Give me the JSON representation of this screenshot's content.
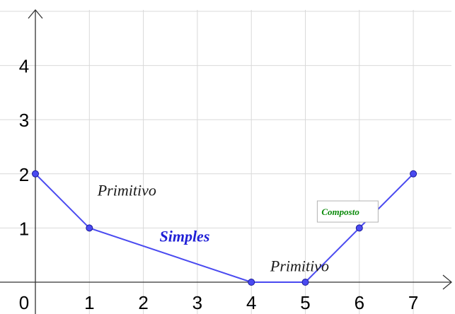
{
  "chart_data": {
    "type": "line",
    "title": "",
    "xlabel": "",
    "ylabel": "",
    "xlim": [
      0,
      7.8
    ],
    "ylim": [
      0,
      5
    ],
    "grid": true,
    "x_ticks": [
      "0",
      "1",
      "2",
      "3",
      "4",
      "5",
      "6",
      "7"
    ],
    "y_ticks": [
      "1",
      "2",
      "3",
      "4"
    ],
    "series": [
      {
        "color": "#4a4af0",
        "points": [
          {
            "x": 0,
            "y": 2
          },
          {
            "x": 1,
            "y": 1
          },
          {
            "x": 4,
            "y": 0
          },
          {
            "x": 5,
            "y": 0
          },
          {
            "x": 6,
            "y": 1
          },
          {
            "x": 7,
            "y": 2
          }
        ]
      }
    ],
    "annotations": [
      {
        "text": "Primitivo",
        "x": 1.15,
        "y": 1.6,
        "style": "plain"
      },
      {
        "text": "Simples",
        "x": 2.3,
        "y": 0.75,
        "style": "simples"
      },
      {
        "text": "Primitivo",
        "x": 4.35,
        "y": 0.2,
        "style": "plain"
      },
      {
        "text": "Composto",
        "x": 5.3,
        "y": 1.2,
        "style": "composto"
      }
    ]
  }
}
